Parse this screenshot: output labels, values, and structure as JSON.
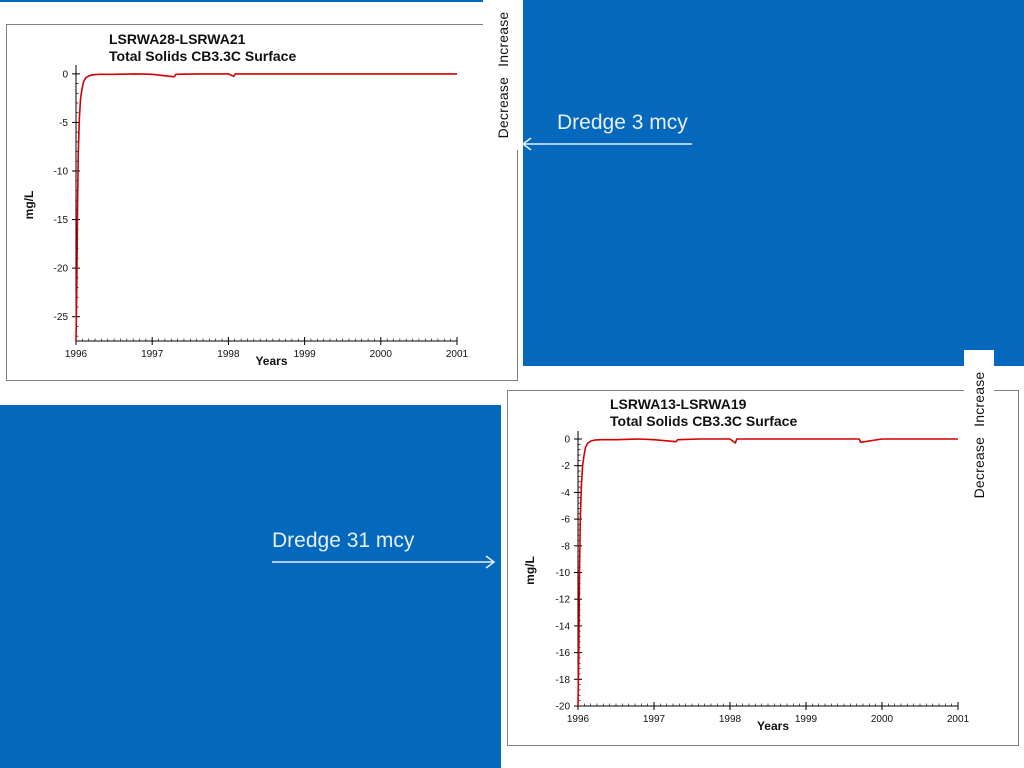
{
  "chart_data": [
    {
      "type": "line",
      "title": "LSRWA28-LSRWA21",
      "subtitle": "Total Solids CB3.3C Surface",
      "xlabel": "Years",
      "ylabel": "mg/L",
      "xlim": [
        1996,
        2001
      ],
      "ylim": [
        -27.5,
        0.5
      ],
      "xticks": [
        "1996",
        "1997",
        "1998",
        "1999",
        "2000",
        "2001"
      ],
      "yticks": [
        "0",
        "-5",
        "-10",
        "-15",
        "-20",
        "-25"
      ],
      "grid": false,
      "series": [
        {
          "color": "#d40000",
          "x": [
            1996.0,
            1996.01,
            1996.02,
            1996.03,
            1996.045,
            1996.06,
            1996.08,
            1996.1,
            1996.13,
            1996.17,
            1996.22,
            1996.3,
            1996.5,
            1996.8,
            1997.0,
            1997.29,
            1997.31,
            1997.6,
            1998.0,
            1998.07,
            1998.09,
            1998.5,
            1999.0,
            1999.5,
            2000.0,
            2000.5,
            2001.0
          ],
          "values": [
            -27.5,
            -22,
            -14,
            -8,
            -4.5,
            -2.5,
            -1.5,
            -0.8,
            -0.4,
            -0.2,
            -0.1,
            -0.05,
            -0.05,
            0,
            -0.05,
            -0.3,
            -0.05,
            0,
            0,
            -0.25,
            0,
            0,
            0,
            0,
            0,
            0,
            0
          ]
        }
      ]
    },
    {
      "type": "line",
      "title": "LSRWA13-LSRWA19",
      "subtitle": "Total Solids CB3.3C Surface",
      "xlabel": "Years",
      "ylabel": "mg/L",
      "xlim": [
        1996,
        2001
      ],
      "ylim": [
        -20,
        0.3
      ],
      "xticks": [
        "1996",
        "1997",
        "1998",
        "1999",
        "2000",
        "2001"
      ],
      "yticks": [
        "0",
        "-2",
        "-4",
        "-6",
        "-8",
        "-10",
        "-12",
        "-14",
        "-16",
        "-18",
        "-20"
      ],
      "grid": false,
      "series": [
        {
          "color": "#d40000",
          "x": [
            1996.0,
            1996.01,
            1996.02,
            1996.03,
            1996.045,
            1996.06,
            1996.08,
            1996.1,
            1996.13,
            1996.17,
            1996.22,
            1996.3,
            1996.5,
            1996.8,
            1997.0,
            1997.29,
            1997.31,
            1997.6,
            1998.0,
            1998.07,
            1998.09,
            1998.5,
            1999.0,
            1999.5,
            1999.7,
            1999.72,
            2000.0,
            2000.5,
            2001.0
          ],
          "values": [
            -20,
            -16,
            -10,
            -6,
            -3.5,
            -2,
            -1.2,
            -0.6,
            -0.3,
            -0.15,
            -0.08,
            -0.05,
            -0.05,
            0,
            -0.05,
            -0.2,
            -0.05,
            0,
            0,
            -0.3,
            0,
            0,
            0,
            0,
            0,
            -0.25,
            0,
            0,
            0
          ]
        }
      ]
    }
  ],
  "side_labels": [
    {
      "increase": "Increase",
      "decrease": "Decrease"
    },
    {
      "increase": "Increase",
      "decrease": "Decrease"
    }
  ],
  "annotations": [
    "Dredge 3 mcy",
    "Dredge 31 mcy"
  ],
  "colors": {
    "slide_blue": "#0468bc",
    "series_red": "#d40000",
    "annotation_text": "#e8eef6"
  }
}
